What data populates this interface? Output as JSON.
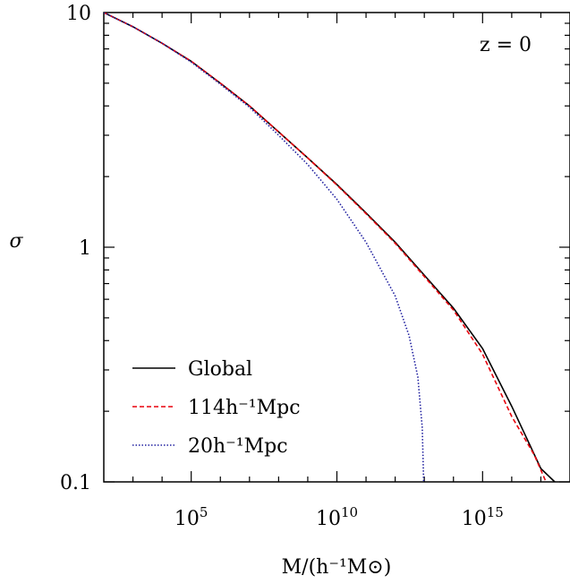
{
  "chart_data": {
    "type": "line",
    "title": "",
    "annotation": "z = 0",
    "xlabel": "M/(h⁻¹M⊙)",
    "ylabel": "σ",
    "xscale": "log",
    "yscale": "log",
    "xlim": [
      100.0,
      1e+18
    ],
    "ylim": [
      0.1,
      10
    ],
    "x_ticks": [
      {
        "value": 100000.0,
        "base": "10",
        "exp": "5"
      },
      {
        "value": 10000000000.0,
        "base": "10",
        "exp": "10"
      },
      {
        "value": 1000000000000000.0,
        "base": "10",
        "exp": "15"
      }
    ],
    "y_ticks": [
      {
        "value": 0.1,
        "label": "0.1"
      },
      {
        "value": 1,
        "label": "1"
      },
      {
        "value": 10,
        "label": "10"
      }
    ],
    "legend_position": "bottom-left",
    "series": [
      {
        "name": "Global",
        "color": "#000000",
        "dash": "solid",
        "points": [
          [
            100.0,
            10.0
          ],
          [
            1000.0,
            8.7
          ],
          [
            10000.0,
            7.4
          ],
          [
            100000.0,
            6.2
          ],
          [
            1000000.0,
            5.0
          ],
          [
            10000000.0,
            4.0
          ],
          [
            100000000.0,
            3.1
          ],
          [
            1000000000.0,
            2.4
          ],
          [
            10000000000.0,
            1.85
          ],
          [
            100000000000.0,
            1.4
          ],
          [
            1000000000000.0,
            1.05
          ],
          [
            10000000000000.0,
            0.76
          ],
          [
            100000000000000.0,
            0.55
          ],
          [
            1000000000000000.0,
            0.37
          ],
          [
            1e+16,
            0.21
          ],
          [
            1e+17,
            0.114
          ],
          [
            3e+17,
            0.1
          ]
        ]
      },
      {
        "name": "114h⁻¹Mpc",
        "color": "#e8000b",
        "dash": "dashed",
        "points": [
          [
            100.0,
            10.0
          ],
          [
            1000.0,
            8.7
          ],
          [
            10000.0,
            7.4
          ],
          [
            100000.0,
            6.2
          ],
          [
            1000000.0,
            5.0
          ],
          [
            10000000.0,
            4.0
          ],
          [
            100000000.0,
            3.1
          ],
          [
            1000000000.0,
            2.4
          ],
          [
            10000000000.0,
            1.84
          ],
          [
            100000000000.0,
            1.39
          ],
          [
            1000000000000.0,
            1.04
          ],
          [
            10000000000000.0,
            0.75
          ],
          [
            100000000000000.0,
            0.54
          ],
          [
            1000000000000000.0,
            0.35
          ],
          [
            1e+16,
            0.19
          ],
          [
            6e+16,
            0.13
          ],
          [
            1.5e+17,
            0.1
          ]
        ]
      },
      {
        "name": "20h⁻¹Mpc",
        "color": "#2020a0",
        "dash": "dotted",
        "points": [
          [
            100.0,
            10.0
          ],
          [
            1000.0,
            8.7
          ],
          [
            10000.0,
            7.4
          ],
          [
            100000.0,
            6.15
          ],
          [
            1000000.0,
            4.95
          ],
          [
            10000000.0,
            3.95
          ],
          [
            100000000.0,
            3.0
          ],
          [
            1000000000.0,
            2.25
          ],
          [
            10000000000.0,
            1.6
          ],
          [
            100000000000.0,
            1.05
          ],
          [
            1000000000000.0,
            0.62
          ],
          [
            3000000000000.0,
            0.42
          ],
          [
            6000000000000.0,
            0.28
          ],
          [
            8500000000000.0,
            0.17
          ],
          [
            9500000000000.0,
            0.1
          ]
        ]
      }
    ]
  }
}
